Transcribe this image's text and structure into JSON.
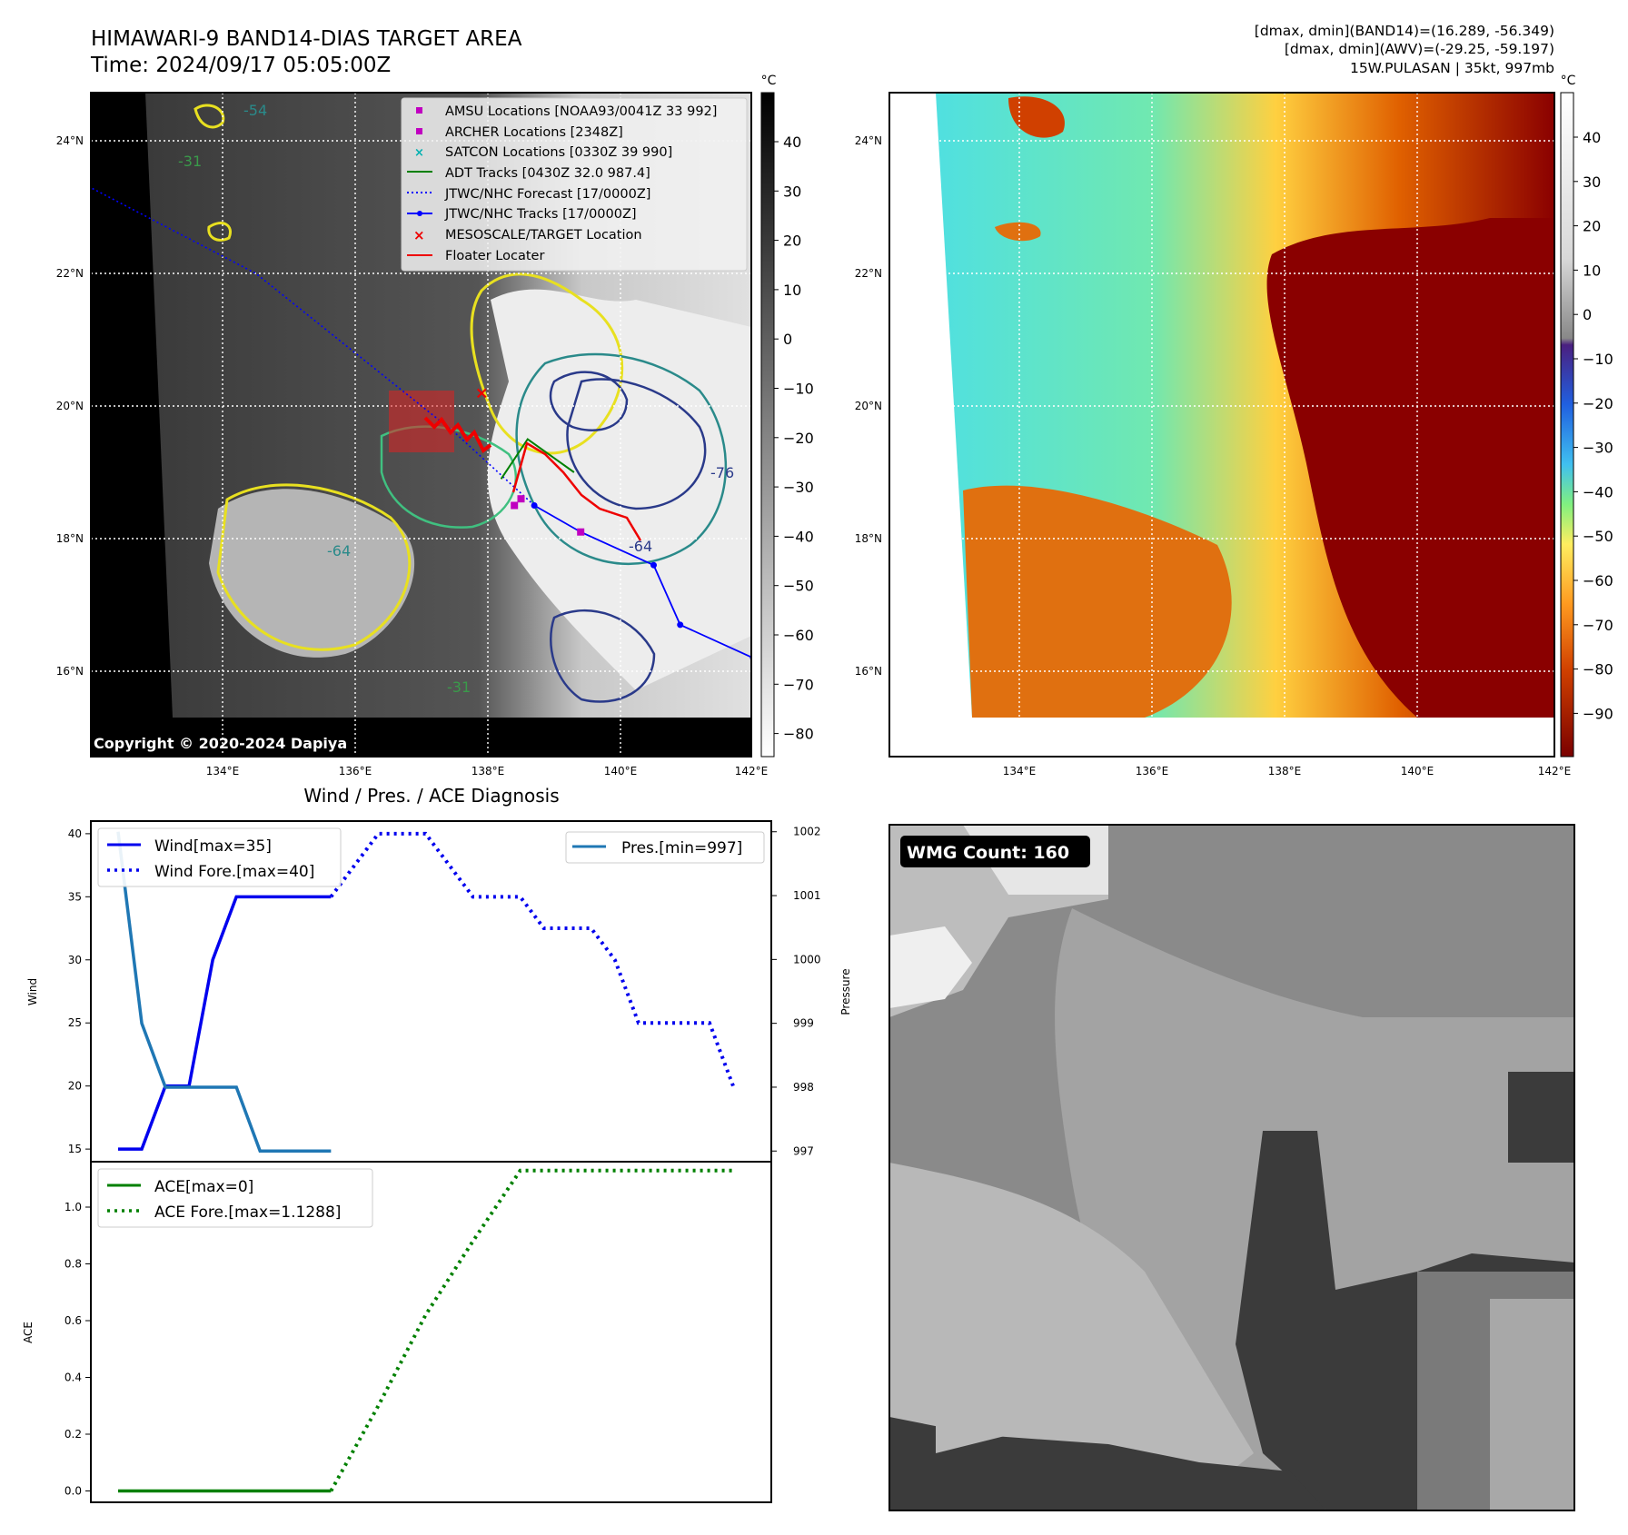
{
  "header": {
    "title": "HIMAWARI-9 BAND14-DIAS TARGET AREA",
    "time": "Time: 2024/09/17 05:05:00Z",
    "info_line1": "[dmax, dmin](BAND14)=(16.289, -56.349)",
    "info_line2": "[dmax, dmin](AWV)=(-29.25, -59.197)",
    "info_line3": "15W.PULASAN | 35kt, 997mb"
  },
  "copyright": "Copyright © 2020-2024 Dapiya",
  "colorbar_unit": "°C",
  "colors": {
    "wind": "#0000ee",
    "pressure": "#1f77b4",
    "ace": "#008000",
    "track_jtwc": "#0000ff",
    "adt": "#008000",
    "floater": "#ee0000",
    "amsu": "#c000c0",
    "satcon": "#00b0b0"
  },
  "map": {
    "lon_ticks": [
      "134°E",
      "136°E",
      "138°E",
      "140°E",
      "142°E"
    ],
    "lat_ticks": [
      "24°N",
      "22°N",
      "20°N",
      "18°N",
      "16°N"
    ],
    "legend": [
      {
        "marker": "square-magenta",
        "label": "AMSU Locations [NOAA93/0041Z 33 992]"
      },
      {
        "marker": "square-magenta",
        "label": "ARCHER Locations [2348Z]"
      },
      {
        "marker": "x-cyan",
        "label": "SATCON Locations [0330Z 39 990]"
      },
      {
        "marker": "line-green",
        "label": "ADT Tracks [0430Z 32.0 987.4]"
      },
      {
        "marker": "dotted-blue",
        "label": "JTWC/NHC Forecast [17/0000Z]"
      },
      {
        "marker": "line-dot-blue",
        "label": "JTWC/NHC Tracks [17/0000Z]"
      },
      {
        "marker": "x-red",
        "label": "MESOSCALE/TARGET Location"
      },
      {
        "marker": "line-red",
        "label": "Floater Locater"
      }
    ],
    "contour_labels": [
      "-54",
      "-31",
      "-64",
      "-76",
      "-64",
      "-31"
    ],
    "colorbar_gray_ticks": [
      "40",
      "30",
      "20",
      "10",
      "0",
      "−10",
      "−20",
      "−30",
      "−40",
      "−50",
      "−60",
      "−70",
      "−80"
    ],
    "colorbar_color_ticks": [
      "40",
      "30",
      "20",
      "10",
      "0",
      "−10",
      "−20",
      "−30",
      "−40",
      "−50",
      "−60",
      "−70",
      "−80",
      "−90"
    ],
    "jtwc_track": [
      [
        142.0,
        16.2
      ],
      [
        140.9,
        16.7
      ],
      [
        140.5,
        17.6
      ],
      [
        139.4,
        18.1
      ],
      [
        138.7,
        18.5
      ]
    ],
    "jtwc_forecast": [
      [
        138.7,
        18.5
      ],
      [
        137.5,
        19.6
      ],
      [
        136.0,
        20.8
      ],
      [
        134.5,
        22.0
      ],
      [
        132.0,
        23.3
      ]
    ],
    "adt_track": [
      [
        138.2,
        18.9
      ],
      [
        138.6,
        19.5
      ],
      [
        139.3,
        19.0
      ]
    ],
    "target_x": [
      137.9,
      20.2
    ],
    "amsu": [
      [
        138.4,
        18.5
      ],
      [
        138.5,
        18.6
      ],
      [
        139.4,
        18.1
      ]
    ]
  },
  "chart_data": [
    {
      "type": "line",
      "title": "Wind / Pres. / ACE Diagnosis",
      "ylabel": "Wind",
      "ylabel_right": "Pressure",
      "ylim": [
        14,
        41
      ],
      "ylim_right": [
        996.833,
        1002.167
      ],
      "yticks": [
        15,
        20,
        25,
        30,
        35,
        40
      ],
      "yticks_right": [
        997,
        998,
        999,
        1000,
        1001,
        1002
      ],
      "x_count": 27,
      "series": [
        {
          "name": "Wind[max=35]",
          "axis": "left",
          "style": "solid",
          "x": [
            0,
            1,
            2,
            3,
            4,
            5,
            6,
            7,
            8,
            9
          ],
          "values": [
            15,
            15,
            20,
            20,
            30,
            35,
            35,
            35,
            35,
            35
          ]
        },
        {
          "name": "Wind Fore.[max=40]",
          "axis": "left",
          "style": "dotted",
          "x": [
            9,
            10,
            11,
            12,
            13,
            14,
            15,
            16,
            17,
            18,
            19,
            20,
            21,
            22,
            23,
            24,
            25,
            26
          ],
          "values": [
            35,
            37.5,
            40,
            40,
            40,
            37.5,
            35,
            35,
            35,
            32.5,
            32.5,
            32.5,
            30,
            25,
            25,
            25,
            25,
            20
          ]
        },
        {
          "name": "Pres.[min=997]",
          "axis": "right",
          "style": "solid",
          "x": [
            0,
            1,
            2,
            3,
            4,
            5,
            6,
            7,
            8,
            9
          ],
          "values": [
            1002,
            999,
            998,
            998,
            998,
            998,
            997,
            997,
            997,
            997
          ]
        }
      ]
    },
    {
      "type": "line",
      "ylabel": "ACE",
      "ylim": [
        -0.04,
        1.16
      ],
      "yticks": [
        0.0,
        0.2,
        0.4,
        0.6,
        0.8,
        1.0
      ],
      "ytick_labels": [
        "0.0",
        "0.2",
        "0.4",
        "0.6",
        "0.8",
        "1.0"
      ],
      "x_count": 27,
      "series": [
        {
          "name": "ACE[max=0]",
          "style": "solid",
          "x": [
            0,
            9
          ],
          "values": [
            0,
            0
          ]
        },
        {
          "name": "ACE Fore.[max=1.1288]",
          "style": "dotted",
          "x": [
            9,
            11,
            13,
            15,
            17,
            18,
            22,
            26
          ],
          "values": [
            0,
            0.3,
            0.62,
            0.88,
            1.1288,
            1.1288,
            1.1288,
            1.1288
          ]
        }
      ]
    }
  ],
  "wmg": {
    "label": "WMG Count: 160"
  }
}
